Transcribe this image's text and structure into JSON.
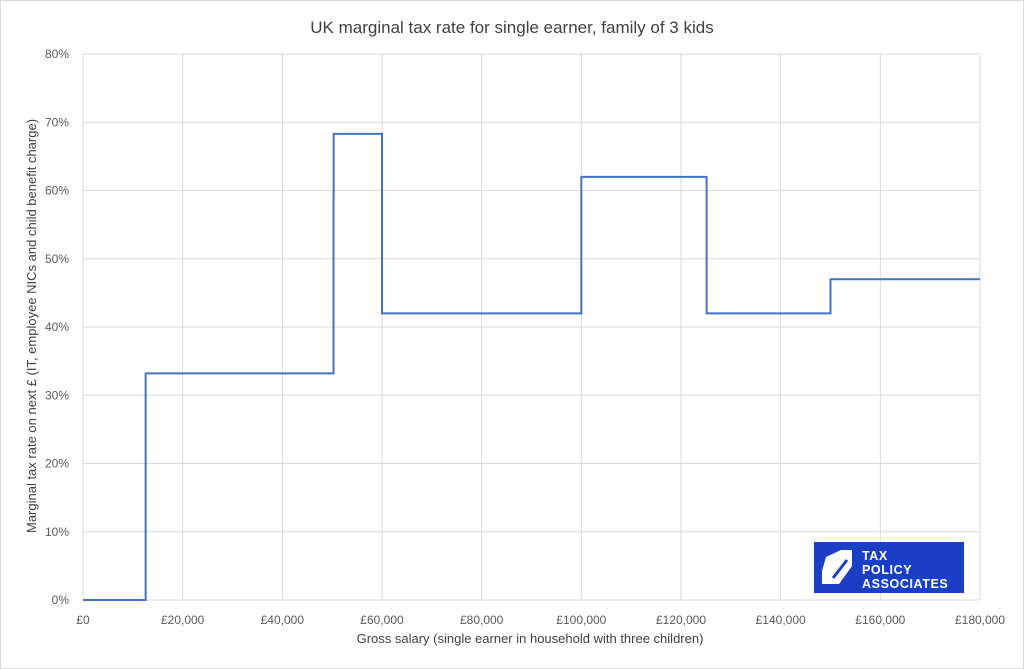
{
  "chart_data": {
    "type": "line",
    "title": "UK marginal tax rate for single earner, family of 3 kids",
    "xlabel": "Gross salary (single earner in household with three children)",
    "ylabel": "Marginal tax rate on next £ (IT, employee NICs and child benefit charge)",
    "xlim": [
      0,
      180000
    ],
    "ylim": [
      0,
      0.8
    ],
    "x_tick_labels": [
      "£0",
      "£20,000",
      "£40,000",
      "£60,000",
      "£80,000",
      "£100,000",
      "£120,000",
      "£140,000",
      "£160,000",
      "£180,000"
    ],
    "y_tick_labels": [
      "0%",
      "10%",
      "20%",
      "30%",
      "40%",
      "50%",
      "60%",
      "70%",
      "80%"
    ],
    "grid": true,
    "legend": "none",
    "series": [
      {
        "color": "#4472c4",
        "x": [
          0,
          12570,
          12570,
          50270,
          50270,
          50300,
          50300,
          60000,
          60000,
          100000,
          100000,
          125140,
          125140,
          150000,
          150000,
          180000
        ],
        "y": [
          0,
          0,
          0.332,
          0.332,
          0.59,
          0.59,
          0.683,
          0.683,
          0.42,
          0.42,
          0.62,
          0.62,
          0.42,
          0.42,
          0.47,
          0.47
        ]
      }
    ]
  },
  "logo": {
    "lines": [
      "TAX",
      "POLICY",
      "ASSOCIATES"
    ],
    "background": "#1a3fc4"
  }
}
